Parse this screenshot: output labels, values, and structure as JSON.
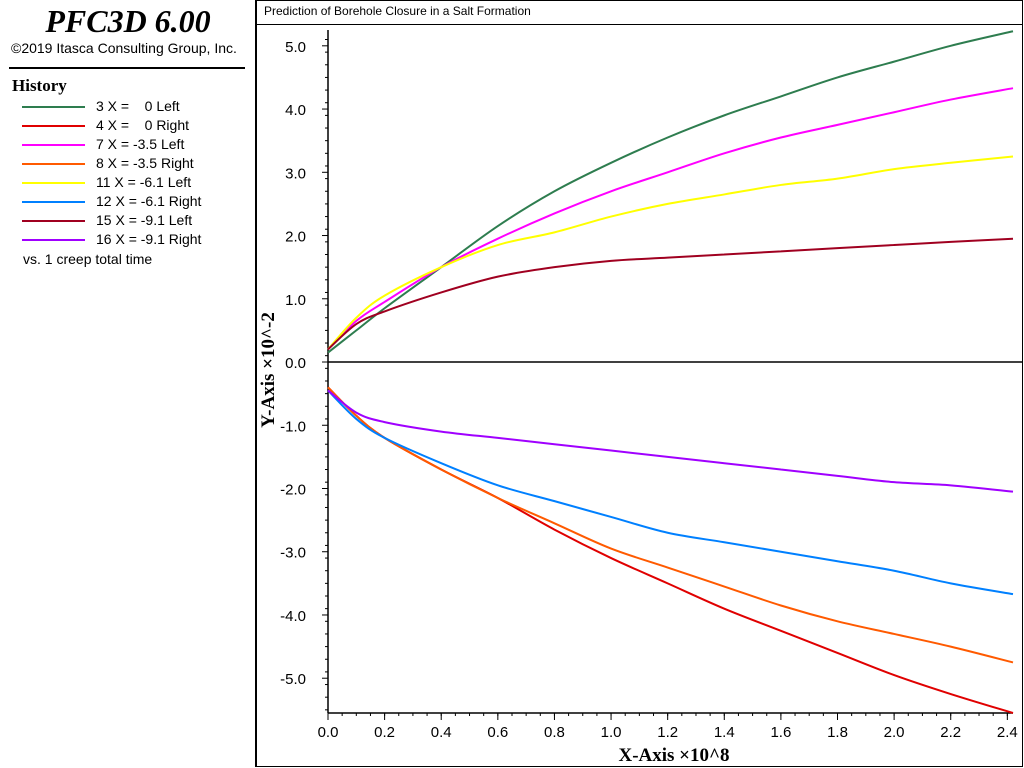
{
  "app": {
    "title": "PFC3D 6.00",
    "copyright": "©2019 Itasca Consulting Group, Inc."
  },
  "history": {
    "title": "History",
    "items": [
      {
        "label": "3 X =    0 Left",
        "color": "#2e7d4f"
      },
      {
        "label": "4 X =    0 Right",
        "color": "#e00000"
      },
      {
        "label": "7 X = -3.5 Left",
        "color": "#ff00ff"
      },
      {
        "label": "8 X = -3.5 Right",
        "color": "#ff5a00"
      },
      {
        "label": "11 X = -6.1 Left",
        "color": "#ffff00"
      },
      {
        "label": "12 X = -6.1 Right",
        "color": "#0080ff"
      },
      {
        "label": "15 X = -9.1 Left",
        "color": "#a00020"
      },
      {
        "label": "16 X = -9.1 Right",
        "color": "#a000ff"
      }
    ],
    "footer": "vs. 1 creep total time"
  },
  "chart_data": {
    "type": "line",
    "title": "Prediction of Borehole Closure in a Salt Formation",
    "xlabel": "X-Axis ×10^8",
    "ylabel": "Y-Axis ×10^-2",
    "xlim": [
      0,
      2.42
    ],
    "ylim": [
      -5.55,
      5.25
    ],
    "xticks": [
      "0.0",
      "0.2",
      "0.4",
      "0.6",
      "0.8",
      "1.0",
      "1.2",
      "1.4",
      "1.6",
      "1.8",
      "2.0",
      "2.2",
      "2.4"
    ],
    "yticks": [
      "5.0",
      "4.0",
      "3.0",
      "2.0",
      "1.0",
      "0.0",
      "-1.0",
      "-2.0",
      "-3.0",
      "-4.0",
      "-5.0"
    ],
    "grid": false,
    "series": [
      {
        "name": "3 X =    0 Left",
        "color": "#2e7d4f",
        "x": [
          0,
          0.1,
          0.2,
          0.4,
          0.6,
          0.8,
          1.0,
          1.2,
          1.4,
          1.6,
          1.8,
          2.0,
          2.2,
          2.42
        ],
        "y": [
          0.15,
          0.5,
          0.85,
          1.5,
          2.15,
          2.7,
          3.15,
          3.55,
          3.9,
          4.2,
          4.5,
          4.75,
          5.0,
          5.23
        ]
      },
      {
        "name": "4 X =    0 Right",
        "color": "#e00000",
        "x": [
          0,
          0.1,
          0.2,
          0.4,
          0.6,
          0.8,
          1.0,
          1.2,
          1.4,
          1.6,
          1.8,
          2.0,
          2.2,
          2.42
        ],
        "y": [
          -0.4,
          -0.85,
          -1.2,
          -1.7,
          -2.15,
          -2.65,
          -3.1,
          -3.5,
          -3.9,
          -4.25,
          -4.6,
          -4.95,
          -5.25,
          -5.55
        ]
      },
      {
        "name": "7 X = -3.5 Left",
        "color": "#ff00ff",
        "x": [
          0,
          0.1,
          0.2,
          0.4,
          0.6,
          0.8,
          1.0,
          1.2,
          1.4,
          1.6,
          1.8,
          2.0,
          2.2,
          2.42
        ],
        "y": [
          0.2,
          0.65,
          0.95,
          1.5,
          1.95,
          2.35,
          2.7,
          3.0,
          3.3,
          3.55,
          3.75,
          3.95,
          4.15,
          4.33
        ]
      },
      {
        "name": "8 X = -3.5 Right",
        "color": "#ff5a00",
        "x": [
          0,
          0.1,
          0.2,
          0.4,
          0.6,
          0.8,
          1.0,
          1.2,
          1.4,
          1.6,
          1.8,
          2.0,
          2.2,
          2.42
        ],
        "y": [
          -0.4,
          -0.85,
          -1.2,
          -1.7,
          -2.15,
          -2.55,
          -2.95,
          -3.25,
          -3.55,
          -3.85,
          -4.1,
          -4.3,
          -4.5,
          -4.75
        ]
      },
      {
        "name": "11 X = -6.1 Left",
        "color": "#ffff00",
        "x": [
          0,
          0.1,
          0.2,
          0.4,
          0.6,
          0.8,
          1.0,
          1.2,
          1.4,
          1.6,
          1.8,
          2.0,
          2.2,
          2.42
        ],
        "y": [
          0.2,
          0.7,
          1.05,
          1.5,
          1.85,
          2.05,
          2.3,
          2.5,
          2.65,
          2.8,
          2.9,
          3.05,
          3.15,
          3.25
        ]
      },
      {
        "name": "12 X = -6.1 Right",
        "color": "#0080ff",
        "x": [
          0,
          0.1,
          0.2,
          0.4,
          0.6,
          0.8,
          1.0,
          1.2,
          1.4,
          1.6,
          1.8,
          2.0,
          2.2,
          2.42
        ],
        "y": [
          -0.45,
          -0.9,
          -1.2,
          -1.6,
          -1.95,
          -2.2,
          -2.45,
          -2.7,
          -2.85,
          -3.0,
          -3.15,
          -3.3,
          -3.5,
          -3.67
        ]
      },
      {
        "name": "15 X = -9.1 Left",
        "color": "#a00020",
        "x": [
          0,
          0.1,
          0.2,
          0.4,
          0.6,
          0.8,
          1.0,
          1.2,
          1.4,
          1.6,
          1.8,
          2.0,
          2.2,
          2.42
        ],
        "y": [
          0.2,
          0.6,
          0.8,
          1.1,
          1.35,
          1.5,
          1.6,
          1.65,
          1.7,
          1.75,
          1.8,
          1.85,
          1.9,
          1.95
        ]
      },
      {
        "name": "16 X = -9.1 Right",
        "color": "#a000ff",
        "x": [
          0,
          0.1,
          0.2,
          0.4,
          0.6,
          0.8,
          1.0,
          1.2,
          1.4,
          1.6,
          1.8,
          2.0,
          2.2,
          2.42
        ],
        "y": [
          -0.45,
          -0.8,
          -0.95,
          -1.1,
          -1.2,
          -1.3,
          -1.4,
          -1.5,
          -1.6,
          -1.7,
          -1.8,
          -1.9,
          -1.95,
          -2.05
        ]
      }
    ]
  }
}
